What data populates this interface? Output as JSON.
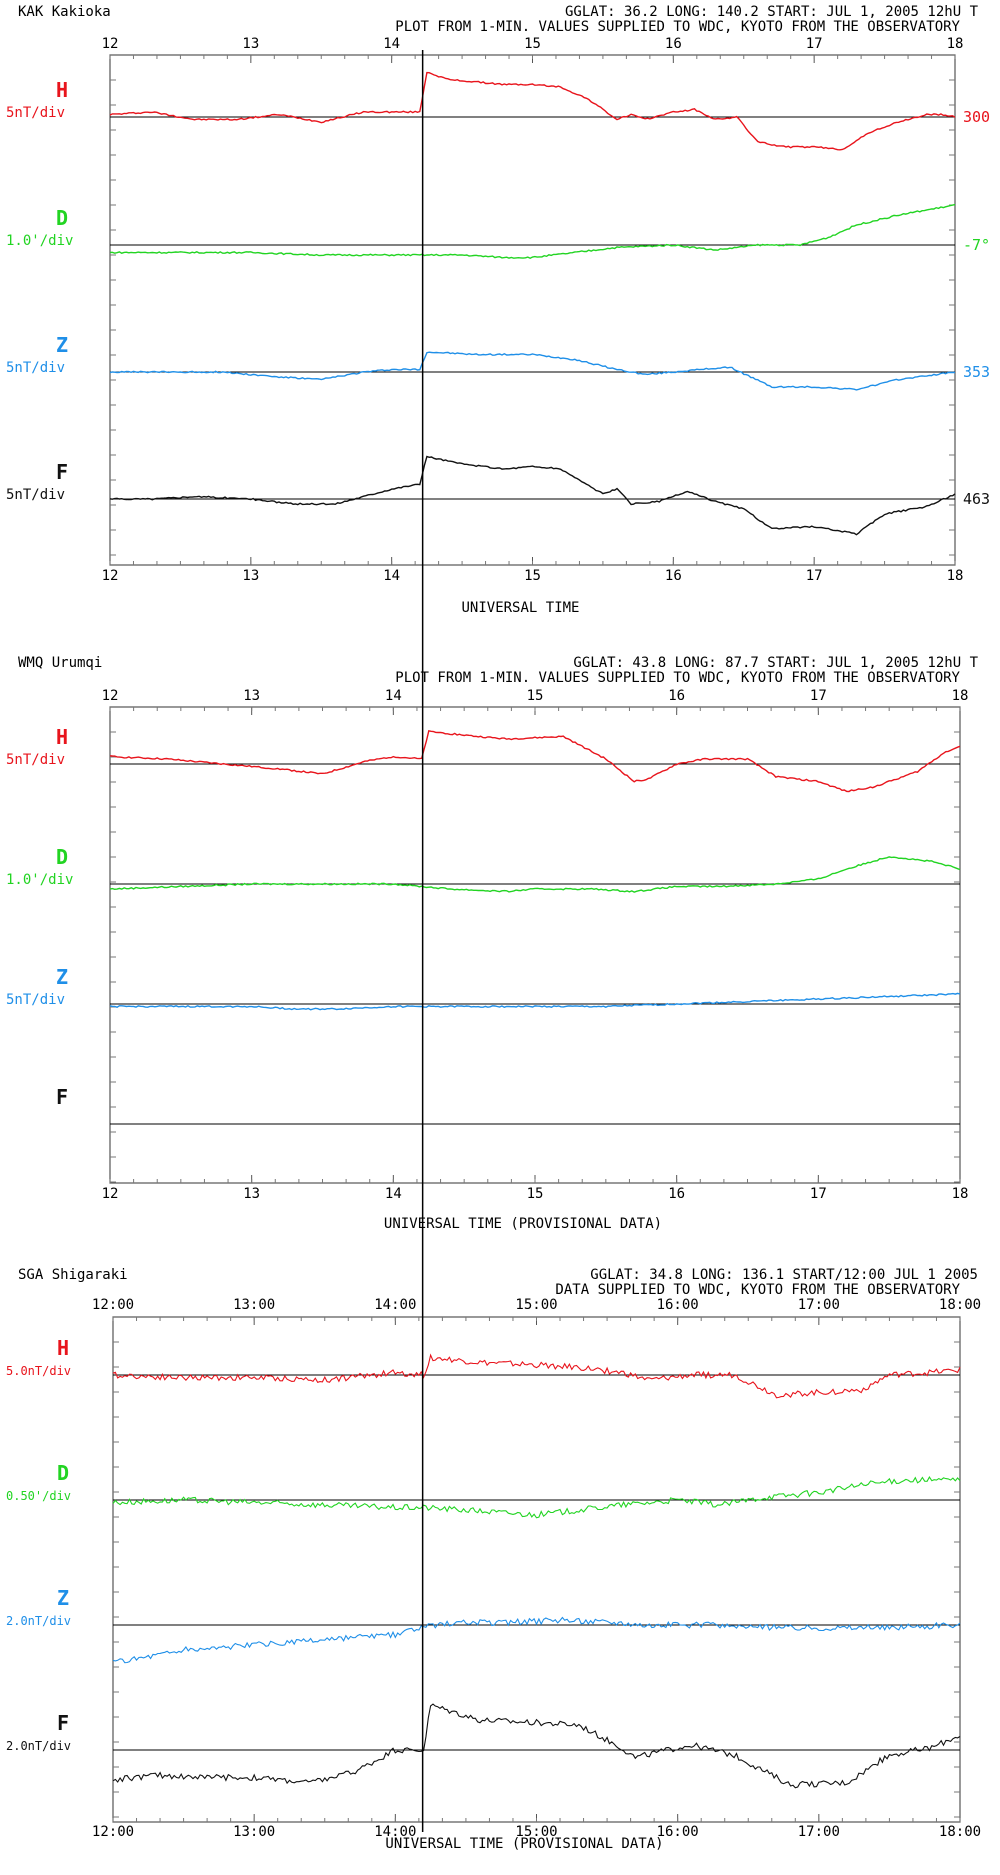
{
  "colors": {
    "H": "#e8141c",
    "D": "#22d422",
    "Z": "#1f8fe8",
    "F": "#111111",
    "axis": "#000000",
    "baseline": "#000000"
  },
  "event_marker": {
    "time_ut": 14.22
  },
  "panels": [
    {
      "id": "kak",
      "station_line": "KAK  Kakioka",
      "info_line": "GGLAT:  36.2 LONG: 140.2  START: JUL  1, 2005  12hU  T",
      "sub_line": "PLOT FROM 1-MIN. VALUES SUPPLIED TO WDC, KYOTO FROM THE OBSERVATORY",
      "top_ticks": [
        "12",
        "13",
        "14",
        "15",
        "16",
        "17",
        "18"
      ],
      "bottom_ticks": [
        "12",
        "13",
        "14",
        "15",
        "16",
        "17",
        "18"
      ],
      "xlabel": "UNIVERSAL TIME",
      "components": [
        {
          "key": "H",
          "scale": "5nT/div",
          "right_label": "300"
        },
        {
          "key": "D",
          "scale": "1.0'/div",
          "right_label": "-7°"
        },
        {
          "key": "Z",
          "scale": "5nT/div",
          "right_label": "353"
        },
        {
          "key": "F",
          "scale": "5nT/div",
          "right_label": "463"
        }
      ]
    },
    {
      "id": "wmq",
      "station_line": "WMQ  Urumqi",
      "info_line": "GGLAT:  43.8 LONG:  87.7  START: JUL  1, 2005  12hU  T",
      "sub_line": "PLOT FROM 1-MIN. VALUES SUPPLIED TO WDC, KYOTO FROM THE OBSERVATORY",
      "top_ticks": [
        "12",
        "13",
        "14",
        "15",
        "16",
        "17",
        "18"
      ],
      "bottom_ticks": [
        "12",
        "13",
        "14",
        "15",
        "16",
        "17",
        "18"
      ],
      "xlabel": "UNIVERSAL TIME (PROVISIONAL DATA)",
      "components": [
        {
          "key": "H",
          "scale": "5nT/div",
          "right_label": ""
        },
        {
          "key": "D",
          "scale": "1.0'/div",
          "right_label": ""
        },
        {
          "key": "Z",
          "scale": "5nT/div",
          "right_label": ""
        },
        {
          "key": "F",
          "scale": "",
          "right_label": ""
        }
      ]
    },
    {
      "id": "sga",
      "station_line": "SGA  Shigaraki",
      "info_line": "GGLAT:   34.8 LONG: 136.1 START/12:00 JUL  1 2005",
      "sub_line": "DATA SUPPLIED TO WDC, KYOTO FROM THE OBSERVATORY",
      "top_ticks": [
        "12:00",
        "13:00",
        "14:00",
        "15:00",
        "16:00",
        "17:00",
        "18:00"
      ],
      "bottom_ticks": [
        "12:00",
        "13:00",
        "14:00",
        "15:00",
        "16:00",
        "17:00",
        "18:00"
      ],
      "xlabel": "UNIVERSAL TIME (PROVISIONAL DATA)",
      "components": [
        {
          "key": "H",
          "scale": "5.0nT/div",
          "right_label": ""
        },
        {
          "key": "D",
          "scale": "0.50'/div",
          "right_label": ""
        },
        {
          "key": "Z",
          "scale": "2.0nT/div",
          "right_label": ""
        },
        {
          "key": "F",
          "scale": "2.0nT/div",
          "right_label": ""
        }
      ]
    }
  ],
  "chart_data": [
    {
      "type": "line",
      "xlim": [
        12,
        18
      ],
      "y_units": "divisions relative to baseline",
      "series": [
        {
          "name": "H",
          "x": [
            12,
            12.3,
            12.6,
            12.9,
            13.2,
            13.5,
            13.8,
            14.0,
            14.2,
            14.25,
            14.4,
            14.6,
            14.8,
            15.0,
            15.2,
            15.4,
            15.6,
            15.7,
            15.8,
            16.0,
            16.15,
            16.3,
            16.45,
            16.6,
            16.8,
            17.0,
            17.2,
            17.4,
            17.6,
            17.8,
            17.9,
            18
          ],
          "values": [
            0.05,
            0.1,
            -0.05,
            -0.05,
            0.05,
            -0.1,
            0.1,
            0.1,
            0.1,
            0.9,
            0.75,
            0.7,
            0.65,
            0.65,
            0.6,
            0.35,
            -0.05,
            0.05,
            -0.05,
            0.1,
            0.15,
            -0.05,
            0,
            -0.5,
            -0.6,
            -0.6,
            -0.65,
            -0.3,
            -0.1,
            0.05,
            0.05,
            0
          ]
        },
        {
          "name": "D",
          "x": [
            12,
            12.5,
            13,
            13.5,
            14,
            14.2,
            14.5,
            14.8,
            15,
            15.3,
            15.6,
            16,
            16.3,
            16.6,
            16.9,
            17.1,
            17.3,
            17.6,
            17.9,
            18
          ],
          "values": [
            -0.15,
            -0.15,
            -0.15,
            -0.2,
            -0.2,
            -0.2,
            -0.2,
            -0.25,
            -0.25,
            -0.15,
            -0.05,
            0,
            -0.1,
            0,
            0,
            0.15,
            0.4,
            0.6,
            0.75,
            0.8
          ]
        },
        {
          "name": "Z",
          "x": [
            12,
            12.4,
            12.8,
            13.2,
            13.5,
            13.8,
            14,
            14.2,
            14.25,
            14.6,
            15,
            15.3,
            15.6,
            15.8,
            16,
            16.4,
            16.7,
            17,
            17.3,
            17.6,
            18
          ],
          "values": [
            0,
            0,
            0,
            -0.1,
            -0.15,
            0,
            0.05,
            0.05,
            0.4,
            0.35,
            0.35,
            0.25,
            0.05,
            -0.05,
            0,
            0.1,
            -0.3,
            -0.3,
            -0.35,
            -0.15,
            0
          ]
        },
        {
          "name": "F",
          "x": [
            12,
            12.3,
            12.6,
            13,
            13.3,
            13.6,
            13.8,
            14.0,
            14.2,
            14.25,
            14.5,
            14.8,
            15.0,
            15.2,
            15.5,
            15.6,
            15.7,
            15.9,
            16.1,
            16.3,
            16.5,
            16.7,
            17.0,
            17.3,
            17.5,
            17.8,
            18
          ],
          "values": [
            0,
            0,
            0.05,
            0,
            -0.1,
            -0.1,
            0.05,
            0.2,
            0.3,
            0.85,
            0.7,
            0.6,
            0.65,
            0.6,
            0.1,
            0.2,
            -0.1,
            -0.05,
            0.15,
            -0.05,
            -0.2,
            -0.6,
            -0.55,
            -0.7,
            -0.3,
            -0.15,
            0.1
          ]
        }
      ]
    },
    {
      "type": "line",
      "xlim": [
        12,
        18
      ],
      "y_units": "divisions relative to baseline",
      "series": [
        {
          "name": "H",
          "x": [
            12,
            12.4,
            12.8,
            13.2,
            13.5,
            13.8,
            14,
            14.2,
            14.25,
            14.6,
            14.8,
            15.2,
            15.5,
            15.7,
            15.8,
            16,
            16.2,
            16.5,
            16.7,
            17,
            17.2,
            17.4,
            17.7,
            17.9,
            18
          ],
          "values": [
            0.15,
            0.1,
            0,
            -0.1,
            -0.2,
            0.05,
            0.15,
            0.1,
            0.65,
            0.55,
            0.5,
            0.55,
            0.1,
            -0.35,
            -0.3,
            0,
            0.1,
            0.1,
            -0.25,
            -0.35,
            -0.55,
            -0.45,
            -0.15,
            0.25,
            0.35
          ]
        },
        {
          "name": "D",
          "x": [
            12,
            12.5,
            13,
            13.5,
            14,
            14.2,
            14.4,
            14.8,
            15,
            15.4,
            15.7,
            16,
            16.3,
            16.7,
            17,
            17.2,
            17.5,
            17.8,
            18
          ],
          "values": [
            -0.1,
            -0.05,
            0,
            0,
            0,
            -0.05,
            -0.1,
            -0.15,
            -0.1,
            -0.1,
            -0.15,
            -0.05,
            -0.05,
            0,
            0.1,
            0.3,
            0.55,
            0.45,
            0.3
          ]
        },
        {
          "name": "Z",
          "x": [
            12,
            12.5,
            13,
            13.3,
            13.6,
            14,
            14.5,
            15,
            15.5,
            16,
            16.5,
            17,
            17.5,
            18
          ],
          "values": [
            -0.05,
            -0.05,
            -0.05,
            -0.1,
            -0.1,
            -0.05,
            -0.05,
            -0.05,
            -0.05,
            0,
            0.05,
            0.1,
            0.15,
            0.2
          ]
        }
      ]
    },
    {
      "type": "line",
      "xlim": [
        12,
        18
      ],
      "y_units": "divisions relative to baseline",
      "series": [
        {
          "name": "H",
          "x": [
            12,
            12.5,
            13,
            13.5,
            14,
            14.2,
            14.25,
            14.6,
            15,
            15.3,
            15.6,
            15.8,
            16.1,
            16.4,
            16.7,
            17,
            17.3,
            17.5,
            17.8,
            18
          ],
          "values": [
            0,
            -0.05,
            -0.05,
            -0.1,
            0.05,
            0,
            0.35,
            0.25,
            0.2,
            0.15,
            0.05,
            -0.1,
            0,
            0,
            -0.4,
            -0.35,
            -0.3,
            0,
            0.05,
            0.1
          ]
        },
        {
          "name": "D",
          "x": [
            12,
            12.5,
            13,
            13.5,
            14,
            14.2,
            14.5,
            15,
            15.3,
            15.6,
            16,
            16.3,
            16.6,
            17,
            17.3,
            17.6,
            18
          ],
          "values": [
            -0.05,
            0,
            -0.05,
            -0.1,
            -0.15,
            -0.15,
            -0.2,
            -0.3,
            -0.2,
            -0.1,
            0,
            -0.1,
            0.05,
            0.15,
            0.3,
            0.4,
            0.4
          ]
        },
        {
          "name": "Z",
          "x": [
            12,
            12.5,
            13,
            13.5,
            14,
            14.2,
            14.4,
            14.8,
            15.2,
            15.6,
            15.8,
            16.2,
            16.6,
            17,
            17.5,
            18
          ],
          "values": [
            -0.75,
            -0.5,
            -0.4,
            -0.3,
            -0.2,
            -0.05,
            0.05,
            0.05,
            0.1,
            0.05,
            0,
            0,
            -0.05,
            -0.05,
            -0.05,
            0
          ]
        },
        {
          "name": "F",
          "x": [
            12,
            12.3,
            12.7,
            13,
            13.4,
            13.7,
            14,
            14.2,
            14.25,
            14.6,
            15,
            15.3,
            15.6,
            15.7,
            16,
            16.1,
            16.4,
            16.6,
            16.8,
            17.2,
            17.5,
            17.8,
            18
          ],
          "values": [
            -0.6,
            -0.5,
            -0.55,
            -0.55,
            -0.65,
            -0.45,
            0,
            0,
            0.9,
            0.6,
            0.55,
            0.5,
            0.05,
            -0.15,
            0.05,
            0.1,
            -0.1,
            -0.4,
            -0.7,
            -0.65,
            -0.1,
            0.05,
            0.3
          ]
        }
      ]
    }
  ]
}
